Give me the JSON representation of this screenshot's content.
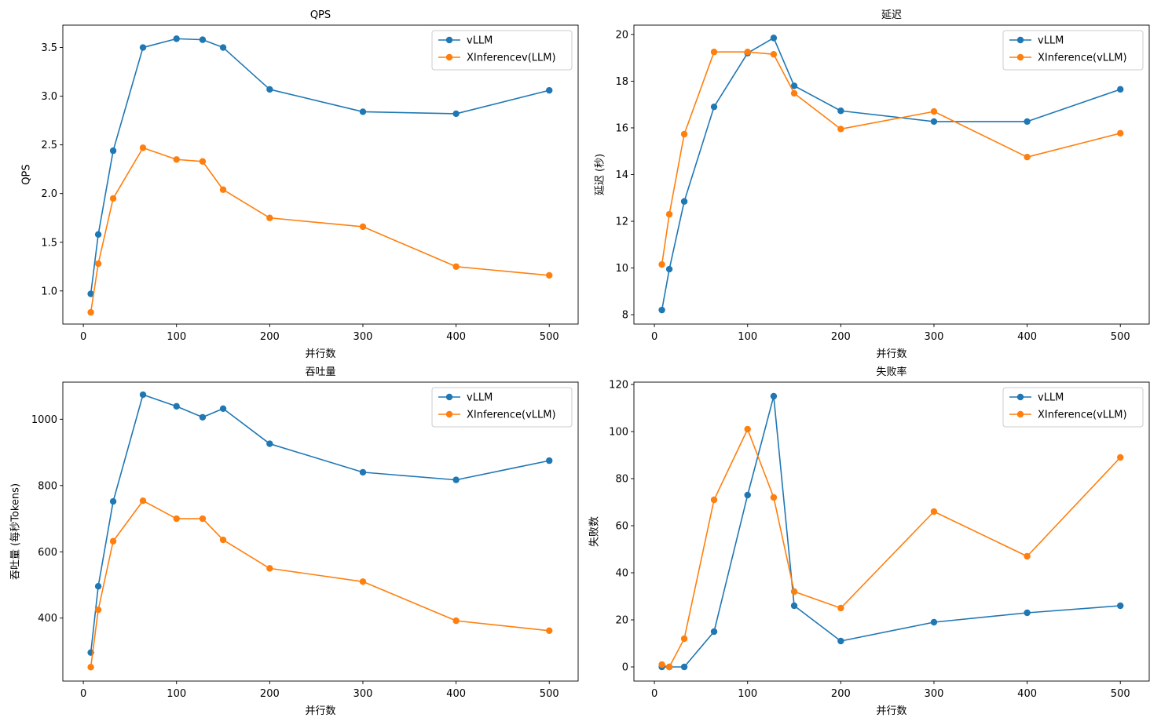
{
  "chart_data": [
    {
      "type": "line",
      "title": "QPS",
      "xlabel": "并行数",
      "ylabel": "QPS",
      "x": [
        8,
        16,
        32,
        64,
        100,
        128,
        150,
        200,
        300,
        400,
        500
      ],
      "xlim": [
        -22,
        531
      ],
      "ylim": [
        0.66,
        3.73
      ],
      "xticks": [
        0,
        100,
        200,
        300,
        400,
        500
      ],
      "yticks": [
        1.0,
        1.5,
        2.0,
        2.5,
        3.0,
        3.5
      ],
      "ytick_decimals": 1,
      "grid": false,
      "legend_position": "upper right",
      "series": [
        {
          "name": "vLLM",
          "color": "#1f77b4",
          "values": [
            0.97,
            1.58,
            2.44,
            3.5,
            3.59,
            3.58,
            3.5,
            3.07,
            2.84,
            2.82,
            3.06
          ]
        },
        {
          "name": "XInferencev(LLM)",
          "color": "#ff7f0e",
          "values": [
            0.78,
            1.28,
            1.95,
            2.47,
            2.35,
            2.33,
            2.04,
            1.75,
            1.66,
            1.25,
            1.16
          ]
        }
      ]
    },
    {
      "type": "line",
      "title": "延迟",
      "xlabel": "并行数",
      "ylabel": "延迟 (秒)",
      "x": [
        8,
        16,
        32,
        64,
        100,
        128,
        150,
        200,
        300,
        400,
        500
      ],
      "xlim": [
        -22,
        531
      ],
      "ylim": [
        7.6,
        20.4
      ],
      "xticks": [
        0,
        100,
        200,
        300,
        400,
        500
      ],
      "yticks": [
        8,
        10,
        12,
        14,
        16,
        18,
        20
      ],
      "ytick_decimals": 0,
      "grid": false,
      "legend_position": "upper right",
      "series": [
        {
          "name": "vLLM",
          "color": "#1f77b4",
          "values": [
            8.2,
            9.95,
            12.85,
            16.9,
            19.2,
            19.85,
            17.8,
            16.73,
            16.27,
            16.27,
            17.65
          ]
        },
        {
          "name": "XInference(vLLM)",
          "color": "#ff7f0e",
          "values": [
            10.15,
            12.3,
            15.73,
            19.25,
            19.25,
            19.15,
            17.48,
            15.95,
            16.7,
            14.75,
            15.77
          ]
        }
      ]
    },
    {
      "type": "line",
      "title": "吞吐量",
      "xlabel": "并行数",
      "ylabel": "吞吐量 (每秒Tokens)",
      "x": [
        8,
        16,
        32,
        64,
        100,
        128,
        150,
        200,
        300,
        400,
        500
      ],
      "xlim": [
        -22,
        531
      ],
      "ylim": [
        210,
        1112
      ],
      "xticks": [
        0,
        100,
        200,
        300,
        400,
        500
      ],
      "yticks": [
        400,
        600,
        800,
        1000
      ],
      "ytick_decimals": 0,
      "grid": false,
      "legend_position": "upper right",
      "series": [
        {
          "name": "vLLM",
          "color": "#1f77b4",
          "values": [
            296,
            496,
            752,
            1074,
            1039,
            1006,
            1032,
            926,
            840,
            817,
            875
          ]
        },
        {
          "name": "XInference(vLLM)",
          "color": "#ff7f0e",
          "values": [
            252,
            425,
            632,
            754,
            700,
            700,
            636,
            550,
            510,
            392,
            362
          ]
        }
      ]
    },
    {
      "type": "line",
      "title": "失败率",
      "xlabel": "并行数",
      "ylabel": "失败数",
      "x": [
        8,
        16,
        32,
        64,
        100,
        128,
        150,
        200,
        300,
        400,
        500
      ],
      "xlim": [
        -22,
        531
      ],
      "ylim": [
        -6,
        121
      ],
      "xticks": [
        0,
        100,
        200,
        300,
        400,
        500
      ],
      "yticks": [
        0,
        20,
        40,
        60,
        80,
        100,
        120
      ],
      "ytick_decimals": 0,
      "grid": false,
      "legend_position": "upper right",
      "series": [
        {
          "name": "vLLM",
          "color": "#1f77b4",
          "values": [
            0,
            0,
            0,
            15,
            73,
            115,
            26,
            11,
            19,
            23,
            26
          ]
        },
        {
          "name": "XInference(vLLM)",
          "color": "#ff7f0e",
          "values": [
            1,
            0,
            12,
            71,
            101,
            72,
            32,
            25,
            66,
            47,
            89
          ]
        }
      ]
    }
  ]
}
